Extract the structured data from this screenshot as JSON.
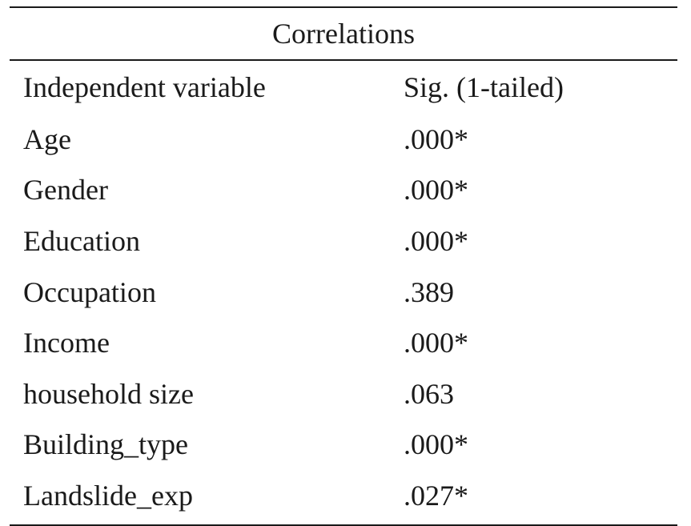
{
  "table": {
    "caption": "Correlations",
    "headers": {
      "variable": "Independent variable",
      "sig": "Sig. (1-tailed)"
    },
    "rows": [
      {
        "variable": "Age",
        "sig": ".000*"
      },
      {
        "variable": "Gender",
        "sig": ".000*"
      },
      {
        "variable": "Education",
        "sig": ".000*"
      },
      {
        "variable": "Occupation",
        "sig": ".389"
      },
      {
        "variable": "Income",
        "sig": ".000*"
      },
      {
        "variable": "household size",
        "sig": ".063"
      },
      {
        "variable": "Building_type",
        "sig": ".000*"
      },
      {
        "variable": "Landslide_exp",
        "sig": ".027*"
      }
    ]
  }
}
